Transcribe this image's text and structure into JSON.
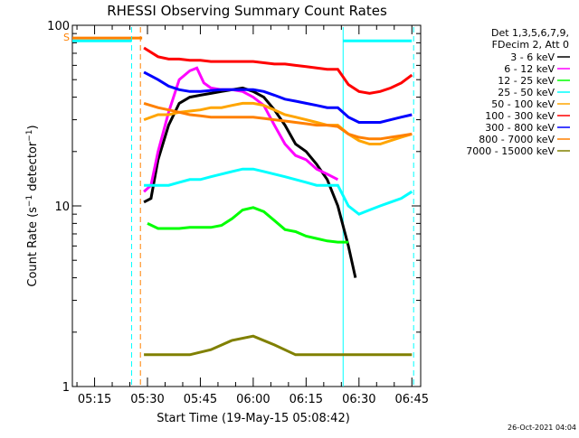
{
  "chart_data": {
    "type": "line",
    "title": "RHESSI Observing Summary Count Rates",
    "xlabel": "Start Time (19-May-15 05:08:42)",
    "ylabel": "Count Rate (s⁻¹ detector⁻¹)",
    "ylabel_main": "Count Rate (s",
    "ylabel_sup1": "−1",
    "ylabel_mid": " detector",
    "ylabel_sup2": "−1",
    "ylabel_end": ")",
    "yscale": "log",
    "ylim": [
      1,
      100
    ],
    "xlim": [
      "05:08:42",
      "06:47:30"
    ],
    "y_ticks": [
      "1",
      "10",
      "100"
    ],
    "x_ticks": [
      "05:15",
      "05:30",
      "05:45",
      "06:00",
      "06:15",
      "06:30",
      "06:45"
    ],
    "legend_header": [
      "Det 1,3,5,6,7,9,",
      "FDecim 2, Att 0"
    ],
    "legend_position": "right",
    "timestamp": "26-Oct-2021 04:04",
    "s_marker": "S",
    "series": [
      {
        "name": "3 - 6 keV",
        "color": "#000000",
        "points": [
          [
            "05:29:00",
            10.5
          ],
          [
            "05:31:00",
            11
          ],
          [
            "05:33:00",
            18
          ],
          [
            "05:36:00",
            28
          ],
          [
            "05:39:00",
            37
          ],
          [
            "05:42:00",
            40
          ],
          [
            "05:45:00",
            41
          ],
          [
            "05:48:00",
            42
          ],
          [
            "05:51:00",
            43
          ],
          [
            "05:54:00",
            44
          ],
          [
            "05:57:00",
            45
          ],
          [
            "06:00:00",
            43
          ],
          [
            "06:03:00",
            40
          ],
          [
            "06:06:00",
            34
          ],
          [
            "06:09:00",
            28
          ],
          [
            "06:12:00",
            22
          ],
          [
            "06:15:00",
            20
          ],
          [
            "06:18:00",
            17
          ],
          [
            "06:21:00",
            14
          ],
          [
            "06:24:00",
            10
          ],
          [
            "06:27:00",
            6
          ],
          [
            "06:29:00",
            4
          ]
        ]
      },
      {
        "name": "6 - 12 keV",
        "color": "#ff00ff",
        "points": [
          [
            "05:29:00",
            12
          ],
          [
            "05:31:00",
            13
          ],
          [
            "05:33:00",
            20
          ],
          [
            "05:36:00",
            33
          ],
          [
            "05:39:00",
            50
          ],
          [
            "05:42:00",
            56
          ],
          [
            "05:44:00",
            58
          ],
          [
            "05:46:00",
            48
          ],
          [
            "05:48:00",
            45
          ],
          [
            "05:51:00",
            44
          ],
          [
            "05:54:00",
            44
          ],
          [
            "05:57:00",
            43
          ],
          [
            "06:00:00",
            40
          ],
          [
            "06:03:00",
            36
          ],
          [
            "06:06:00",
            28
          ],
          [
            "06:09:00",
            22
          ],
          [
            "06:12:00",
            19
          ],
          [
            "06:15:00",
            18
          ],
          [
            "06:18:00",
            16
          ],
          [
            "06:21:00",
            15
          ],
          [
            "06:24:00",
            14
          ]
        ]
      },
      {
        "name": "12 - 25 keV",
        "color": "#00ff00",
        "points": [
          [
            "05:30:00",
            8
          ],
          [
            "05:33:00",
            7.5
          ],
          [
            "05:36:00",
            7.5
          ],
          [
            "05:39:00",
            7.5
          ],
          [
            "05:42:00",
            7.6
          ],
          [
            "05:45:00",
            7.6
          ],
          [
            "05:48:00",
            7.6
          ],
          [
            "05:51:00",
            7.8
          ],
          [
            "05:54:00",
            8.5
          ],
          [
            "05:57:00",
            9.5
          ],
          [
            "06:00:00",
            9.8
          ],
          [
            "06:03:00",
            9.3
          ],
          [
            "06:06:00",
            8.3
          ],
          [
            "06:09:00",
            7.4
          ],
          [
            "06:12:00",
            7.2
          ],
          [
            "06:15:00",
            6.8
          ],
          [
            "06:18:00",
            6.6
          ],
          [
            "06:21:00",
            6.4
          ],
          [
            "06:24:00",
            6.3
          ],
          [
            "06:27:00",
            6.3
          ]
        ]
      },
      {
        "name": "25 - 50 keV",
        "color": "#00ffff",
        "points": [
          [
            "05:29:00",
            13
          ],
          [
            "05:33:00",
            13
          ],
          [
            "05:36:00",
            13
          ],
          [
            "05:39:00",
            13.5
          ],
          [
            "05:42:00",
            14
          ],
          [
            "05:45:00",
            14
          ],
          [
            "05:48:00",
            14.5
          ],
          [
            "05:51:00",
            15
          ],
          [
            "05:54:00",
            15.5
          ],
          [
            "05:57:00",
            16
          ],
          [
            "06:00:00",
            16
          ],
          [
            "06:03:00",
            15.5
          ],
          [
            "06:06:00",
            15
          ],
          [
            "06:09:00",
            14.5
          ],
          [
            "06:12:00",
            14
          ],
          [
            "06:15:00",
            13.5
          ],
          [
            "06:18:00",
            13
          ],
          [
            "06:21:00",
            13
          ],
          [
            "06:24:00",
            13
          ],
          [
            "06:27:00",
            10
          ],
          [
            "06:30:00",
            9
          ],
          [
            "06:33:00",
            9.5
          ],
          [
            "06:36:00",
            10
          ],
          [
            "06:39:00",
            10.5
          ],
          [
            "06:42:00",
            11
          ],
          [
            "06:45:00",
            12
          ]
        ]
      },
      {
        "name": "50 - 100 keV",
        "color": "#ffa500",
        "points": [
          [
            "05:29:00",
            30
          ],
          [
            "05:33:00",
            32
          ],
          [
            "05:36:00",
            32
          ],
          [
            "05:39:00",
            33
          ],
          [
            "05:42:00",
            33.5
          ],
          [
            "05:45:00",
            34
          ],
          [
            "05:48:00",
            35
          ],
          [
            "05:51:00",
            35
          ],
          [
            "05:54:00",
            36
          ],
          [
            "05:57:00",
            37
          ],
          [
            "06:00:00",
            37
          ],
          [
            "06:03:00",
            36
          ],
          [
            "06:06:00",
            34
          ],
          [
            "06:09:00",
            32
          ],
          [
            "06:12:00",
            31
          ],
          [
            "06:15:00",
            30
          ],
          [
            "06:18:00",
            29
          ],
          [
            "06:21:00",
            28
          ],
          [
            "06:24:00",
            28
          ],
          [
            "06:27:00",
            25
          ],
          [
            "06:30:00",
            23
          ],
          [
            "06:33:00",
            22
          ],
          [
            "06:36:00",
            22
          ],
          [
            "06:39:00",
            23
          ],
          [
            "06:42:00",
            24
          ],
          [
            "06:45:00",
            25
          ]
        ]
      },
      {
        "name": "100 - 300 keV",
        "color": "#ff0000",
        "points": [
          [
            "05:29:00",
            75
          ],
          [
            "05:33:00",
            67
          ],
          [
            "05:36:00",
            65
          ],
          [
            "05:39:00",
            65
          ],
          [
            "05:42:00",
            64
          ],
          [
            "05:45:00",
            64
          ],
          [
            "05:48:00",
            63
          ],
          [
            "05:51:00",
            63
          ],
          [
            "05:54:00",
            63
          ],
          [
            "05:57:00",
            63
          ],
          [
            "06:00:00",
            63
          ],
          [
            "06:03:00",
            62
          ],
          [
            "06:06:00",
            61
          ],
          [
            "06:09:00",
            61
          ],
          [
            "06:12:00",
            60
          ],
          [
            "06:15:00",
            59
          ],
          [
            "06:18:00",
            58
          ],
          [
            "06:21:00",
            57
          ],
          [
            "06:24:00",
            57
          ],
          [
            "06:27:00",
            47
          ],
          [
            "06:30:00",
            43
          ],
          [
            "06:33:00",
            42
          ],
          [
            "06:36:00",
            43
          ],
          [
            "06:39:00",
            45
          ],
          [
            "06:42:00",
            48
          ],
          [
            "06:45:00",
            53
          ]
        ]
      },
      {
        "name": "300 - 800 keV",
        "color": "#0000ff",
        "points": [
          [
            "05:29:00",
            55
          ],
          [
            "05:33:00",
            50
          ],
          [
            "05:36:00",
            46
          ],
          [
            "05:39:00",
            44
          ],
          [
            "05:42:00",
            43
          ],
          [
            "05:45:00",
            43
          ],
          [
            "05:48:00",
            43.5
          ],
          [
            "05:51:00",
            44
          ],
          [
            "05:54:00",
            44
          ],
          [
            "05:57:00",
            44
          ],
          [
            "06:00:00",
            44
          ],
          [
            "06:03:00",
            43
          ],
          [
            "06:06:00",
            41
          ],
          [
            "06:09:00",
            39
          ],
          [
            "06:12:00",
            38
          ],
          [
            "06:15:00",
            37
          ],
          [
            "06:18:00",
            36
          ],
          [
            "06:21:00",
            35
          ],
          [
            "06:24:00",
            35
          ],
          [
            "06:27:00",
            31
          ],
          [
            "06:30:00",
            29
          ],
          [
            "06:33:00",
            29
          ],
          [
            "06:36:00",
            29
          ],
          [
            "06:39:00",
            30
          ],
          [
            "06:42:00",
            31
          ],
          [
            "06:45:00",
            32
          ]
        ]
      },
      {
        "name": "800 - 7000 keV",
        "color": "#ff8000",
        "points": [
          [
            "05:29:00",
            37
          ],
          [
            "05:33:00",
            35
          ],
          [
            "05:36:00",
            34
          ],
          [
            "05:39:00",
            33
          ],
          [
            "05:42:00",
            32
          ],
          [
            "05:45:00",
            31.5
          ],
          [
            "05:48:00",
            31
          ],
          [
            "05:51:00",
            31
          ],
          [
            "05:54:00",
            31
          ],
          [
            "05:57:00",
            31
          ],
          [
            "06:00:00",
            31
          ],
          [
            "06:03:00",
            30.5
          ],
          [
            "06:06:00",
            30
          ],
          [
            "06:09:00",
            29.5
          ],
          [
            "06:12:00",
            29
          ],
          [
            "06:15:00",
            28.5
          ],
          [
            "06:18:00",
            28
          ],
          [
            "06:21:00",
            28
          ],
          [
            "06:24:00",
            27.5
          ],
          [
            "06:27:00",
            25
          ],
          [
            "06:30:00",
            24
          ],
          [
            "06:33:00",
            23.5
          ],
          [
            "06:36:00",
            23.5
          ],
          [
            "06:39:00",
            24
          ],
          [
            "06:42:00",
            24.5
          ],
          [
            "06:45:00",
            25
          ]
        ]
      },
      {
        "name": "7000 - 15000 keV",
        "color": "#808000",
        "points": [
          [
            "05:29:00",
            1.5
          ],
          [
            "05:36:00",
            1.5
          ],
          [
            "05:42:00",
            1.5
          ],
          [
            "05:48:00",
            1.6
          ],
          [
            "05:54:00",
            1.8
          ],
          [
            "06:00:00",
            1.9
          ],
          [
            "06:06:00",
            1.7
          ],
          [
            "06:12:00",
            1.5
          ],
          [
            "06:18:00",
            1.5
          ],
          [
            "06:24:00",
            1.5
          ],
          [
            "06:30:00",
            1.5
          ],
          [
            "06:36:00",
            1.5
          ],
          [
            "06:42:00",
            1.5
          ],
          [
            "06:45:00",
            1.5
          ]
        ]
      }
    ],
    "annotations": {
      "s_line": {
        "color": "#ff8000",
        "start": "05:08:42",
        "end": "05:28:30",
        "value": 85
      },
      "attenuator_bars": [
        {
          "color": "#00ffff",
          "start": "05:08:42",
          "end": "05:25:30",
          "value": 82
        },
        {
          "color": "#00ffff",
          "start": "06:25:30",
          "end": "06:45:00",
          "value": 82
        }
      ],
      "vlines": [
        {
          "color": "#00ffff",
          "style": "dashed",
          "t": "05:25:30"
        },
        {
          "color": "#ff8000",
          "style": "dashed",
          "t": "05:28:00"
        },
        {
          "color": "#00ffff",
          "style": "solid",
          "t": "06:25:30"
        },
        {
          "color": "#00ffff",
          "style": "dashed",
          "t": "06:45:30"
        }
      ]
    }
  }
}
